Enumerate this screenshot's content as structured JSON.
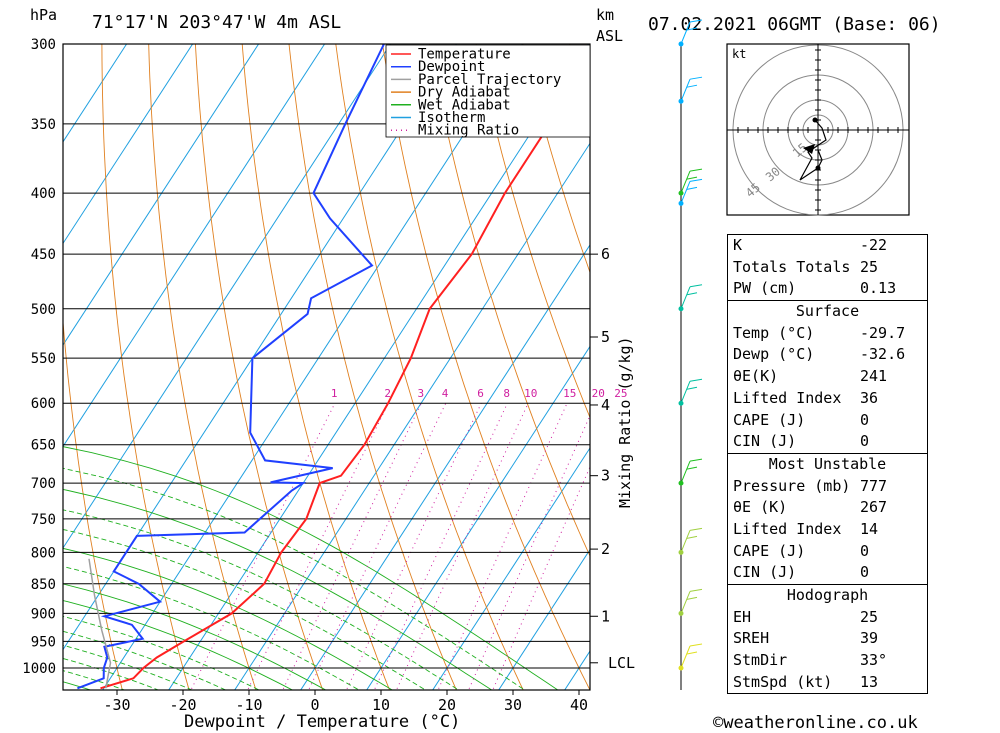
{
  "header": {
    "location": "71°17'N  203°47'W  4m  ASL",
    "datetime": "07.02.2021  06GMT  (Base: 06)",
    "hpa_label": "hPa",
    "km_label": "km",
    "asl_label": "ASL",
    "kt_label": "kt"
  },
  "axes": {
    "xlabel": "Dewpoint / Temperature (°C)",
    "mixing_label": "Mixing Ratio (g/kg)",
    "lcl_label": "LCL"
  },
  "legend": [
    {
      "label": "Temperature",
      "color": "#ff2020"
    },
    {
      "label": "Dewpoint",
      "color": "#2040ff"
    },
    {
      "label": "Parcel Trajectory",
      "color": "#a0a0a0"
    },
    {
      "label": "Dry Adiabat",
      "color": "#e08020"
    },
    {
      "label": "Wet Adiabat",
      "color": "#20b020"
    },
    {
      "label": "Isotherm",
      "color": "#20a0e0"
    },
    {
      "label": "Mixing Ratio",
      "color": "#d020a0"
    }
  ],
  "chart_data": {
    "type": "line",
    "title": "71°17'N 203°47'W 4m ASL",
    "xlabel": "Dewpoint / Temperature (°C)",
    "ylabel": "hPa",
    "xlim": [
      -40,
      42
    ],
    "ylim": [
      1050,
      300
    ],
    "pressure_ticks": [
      300,
      350,
      400,
      450,
      500,
      550,
      600,
      650,
      700,
      750,
      800,
      850,
      900,
      950,
      1000
    ],
    "temp_ticks": [
      -30,
      -20,
      -10,
      0,
      10,
      20,
      30,
      40
    ],
    "km_ticks": [
      {
        "km": "6",
        "p": 450
      },
      {
        "km": "5",
        "p": 528
      },
      {
        "km": "4",
        "p": 602
      },
      {
        "km": "3",
        "p": 690
      },
      {
        "km": "2",
        "p": 795
      },
      {
        "km": "1",
        "p": 905
      },
      {
        "km": "LCL",
        "p": 990
      }
    ],
    "mixing_ratio_labels": [
      "1",
      "2",
      "3",
      "4",
      "6",
      "8",
      "10",
      "15",
      "20",
      "25"
    ],
    "series": [
      {
        "name": "Temperature",
        "color": "#ff2020",
        "points": [
          [
            -30.5,
            1040
          ],
          [
            -26.5,
            1020
          ],
          [
            -26.0,
            1000
          ],
          [
            -25.0,
            980
          ],
          [
            -22.5,
            950
          ],
          [
            -18.0,
            900
          ],
          [
            -16.0,
            850
          ],
          [
            -16.5,
            800
          ],
          [
            -16.0,
            750
          ],
          [
            -17.5,
            700
          ],
          [
            -15.0,
            690
          ],
          [
            -14.5,
            650
          ],
          [
            -15.0,
            600
          ],
          [
            -16.0,
            550
          ],
          [
            -18.0,
            500
          ],
          [
            -17.0,
            450
          ],
          [
            -18.0,
            400
          ],
          [
            -18.0,
            350
          ],
          [
            -16.0,
            300
          ]
        ]
      },
      {
        "name": "Dewpoint",
        "color": "#2040ff",
        "points": [
          [
            -34.0,
            1040
          ],
          [
            -31.0,
            1020
          ],
          [
            -32.0,
            1000
          ],
          [
            -32.5,
            980
          ],
          [
            -34.0,
            960
          ],
          [
            -29.0,
            945
          ],
          [
            -32.0,
            920
          ],
          [
            -37.0,
            905
          ],
          [
            -30.0,
            880
          ],
          [
            -35.0,
            850
          ],
          [
            -40.0,
            830
          ],
          [
            -40.0,
            775
          ],
          [
            -24.0,
            770
          ],
          [
            -21.0,
            710
          ],
          [
            -20.0,
            700
          ],
          [
            -25.0,
            699
          ],
          [
            -17.0,
            680
          ],
          [
            -28.0,
            670
          ],
          [
            -33.0,
            635
          ],
          [
            -40.0,
            550
          ],
          [
            -36.0,
            505
          ],
          [
            -37.0,
            490
          ],
          [
            -31.0,
            460
          ],
          [
            -42.0,
            420
          ],
          [
            -47.0,
            400
          ],
          [
            -49.0,
            350
          ],
          [
            -51.0,
            300
          ]
        ]
      },
      {
        "name": "Parcel Trajectory",
        "color": "#a0a0a0",
        "points": [
          [
            -29.7,
            1040
          ],
          [
            -31.5,
            990
          ],
          [
            -36.0,
            930
          ],
          [
            -40.5,
            870
          ],
          [
            -45.0,
            810
          ]
        ]
      }
    ],
    "wind_barbs": [
      {
        "p": 300,
        "color": "#00b0ff"
      },
      {
        "p": 335,
        "color": "#00b0ff"
      },
      {
        "p": 400,
        "color": "#20c020"
      },
      {
        "p": 408,
        "color": "#00b0ff"
      },
      {
        "p": 500,
        "color": "#00c0a0"
      },
      {
        "p": 600,
        "color": "#00c0a0"
      },
      {
        "p": 700,
        "color": "#20c020"
      },
      {
        "p": 800,
        "color": "#a0d040"
      },
      {
        "p": 900,
        "color": "#a0d040"
      },
      {
        "p": 1000,
        "color": "#e0e020"
      }
    ]
  },
  "hodograph": {
    "rings_label": [
      "15",
      "30",
      "45"
    ],
    "unit": "kt"
  },
  "indices": {
    "top": [
      {
        "label": "K",
        "value": "-22"
      },
      {
        "label": "Totals Totals",
        "value": "25"
      },
      {
        "label": "PW (cm)",
        "value": "0.13"
      }
    ],
    "surface_title": "Surface",
    "surface": [
      {
        "label": "Temp (°C)",
        "value": "-29.7"
      },
      {
        "label": "Dewp (°C)",
        "value": "-32.6"
      },
      {
        "label": "θE(K)",
        "value": "241"
      },
      {
        "label": "Lifted Index",
        "value": "36"
      },
      {
        "label": "CAPE (J)",
        "value": "0"
      },
      {
        "label": "CIN (J)",
        "value": "0"
      }
    ],
    "unstable_title": "Most Unstable",
    "unstable": [
      {
        "label": "Pressure (mb)",
        "value": "777"
      },
      {
        "label": "θE (K)",
        "value": "267"
      },
      {
        "label": "Lifted Index",
        "value": "14"
      },
      {
        "label": "CAPE (J)",
        "value": "0"
      },
      {
        "label": "CIN (J)",
        "value": "0"
      }
    ],
    "hodo_title": "Hodograph",
    "hodo": [
      {
        "label": "EH",
        "value": "25"
      },
      {
        "label": "SREH",
        "value": "39"
      },
      {
        "label": "StmDir",
        "value": "33°"
      },
      {
        "label": "StmSpd (kt)",
        "value": "13"
      }
    ]
  },
  "footer": {
    "copyright": "©weatheronline.co.uk"
  }
}
